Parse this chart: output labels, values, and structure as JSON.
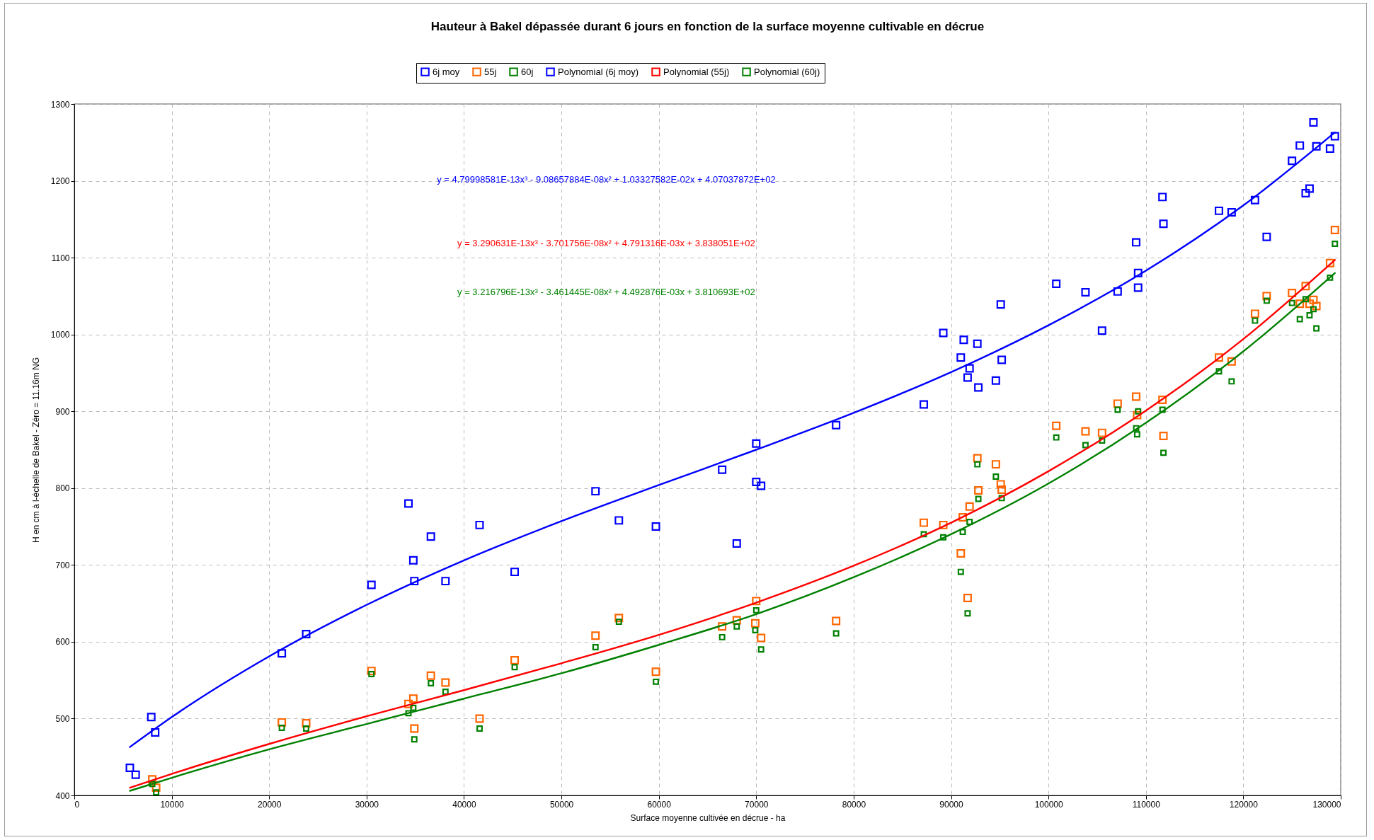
{
  "chart_data": {
    "type": "scatter",
    "title": "Hauteur à Bakel dépassée durant 6 jours en fonction de la surface moyenne cultivable en décrue",
    "xlabel": "Surface moyenne cultivée en décrue - ha",
    "ylabel": "H en cm à l-échelle de Bakel - Zéro = 11.16m NG",
    "xlim": [
      0,
      130000
    ],
    "xticks": [
      0,
      10000,
      20000,
      30000,
      40000,
      50000,
      60000,
      70000,
      80000,
      90000,
      100000,
      110000,
      120000,
      130000
    ],
    "ylim": [
      400,
      1300
    ],
    "yticks": [
      400,
      500,
      600,
      700,
      800,
      900,
      1000,
      1100,
      1200,
      1300
    ],
    "grid": true,
    "legend": "top",
    "annotations": [
      "y = 4.79998581E-13x³ - 9.08657884E-08x² + 1.03327582E-02x + 4.07037872E+02",
      "y = 3.290631E-13x³ - 3.701756E-08x² + 4.791316E-03x + 3.838051E+02",
      "y = 3.216796E-13x³ - 3.461445E-08x² + 4.492876E-03x + 3.810693E+02"
    ],
    "series": [
      {
        "name": "6j moy",
        "marker": "square",
        "color": "#0000ff",
        "x": [
          5700,
          6300,
          7900,
          8300,
          21300,
          23800,
          30500,
          34300,
          34800,
          34900,
          36600,
          38100,
          41600,
          45200,
          53500,
          55900,
          59700,
          66500,
          68000,
          70000,
          70000,
          70500,
          78200,
          87200,
          89200,
          91000,
          91300,
          91700,
          91900,
          92700,
          92800,
          94600,
          95100,
          95200,
          100800,
          103800,
          105500,
          107100,
          109000,
          109200,
          109200,
          111700,
          111800,
          117500,
          118800,
          121200,
          122400,
          125000,
          125800,
          126400,
          126800,
          127200,
          127500,
          128900,
          129400
        ],
        "values": [
          436,
          427,
          502,
          482,
          585,
          610,
          674,
          780,
          706,
          679,
          737,
          679,
          752,
          691,
          796,
          758,
          750,
          824,
          728,
          858,
          808,
          803,
          882,
          909,
          1002,
          970,
          993,
          944,
          956,
          988,
          931,
          940,
          1039,
          967,
          1066,
          1055,
          1005,
          1056,
          1120,
          1080,
          1061,
          1179,
          1144,
          1161,
          1159,
          1175,
          1127,
          1226,
          1246,
          1184,
          1190,
          1276,
          1245,
          1242,
          1258
        ]
      },
      {
        "name": "55j",
        "marker": "square",
        "color": "#ff6600",
        "x": [
          8000,
          8400,
          21300,
          23800,
          30500,
          34300,
          34800,
          34900,
          36600,
          38100,
          41600,
          45200,
          53500,
          55900,
          59700,
          66500,
          68000,
          70000,
          69900,
          70500,
          78200,
          87200,
          89200,
          91000,
          91200,
          91700,
          91900,
          92700,
          92800,
          94600,
          95100,
          95200,
          100800,
          103800,
          105500,
          107100,
          109000,
          109100,
          111700,
          111800,
          117500,
          118800,
          121200,
          122400,
          125000,
          125800,
          126400,
          126800,
          127200,
          127500,
          128900,
          129400
        ],
        "values": [
          421,
          410,
          495,
          494,
          562,
          519,
          526,
          487,
          556,
          547,
          500,
          576,
          608,
          631,
          561,
          620,
          628,
          653,
          624,
          605,
          627,
          755,
          752,
          715,
          762,
          657,
          776,
          839,
          797,
          831,
          805,
          798,
          881,
          874,
          872,
          910,
          919,
          895,
          915,
          868,
          970,
          965,
          1027,
          1050,
          1054,
          1040,
          1063,
          1040,
          1045,
          1037,
          1093,
          1136
        ]
      },
      {
        "name": "60j",
        "marker": "square",
        "color": "#008000",
        "x": [
          8000,
          8400,
          21300,
          23800,
          30500,
          34300,
          34800,
          34900,
          36600,
          38100,
          41600,
          45200,
          53500,
          55900,
          59700,
          66500,
          68000,
          70000,
          69900,
          70500,
          78200,
          87200,
          89200,
          91000,
          91200,
          91700,
          91900,
          92700,
          92800,
          94600,
          95200,
          100800,
          103800,
          105500,
          107100,
          109000,
          109100,
          109200,
          111700,
          111800,
          117500,
          118800,
          121200,
          122400,
          125000,
          125800,
          126400,
          126800,
          127200,
          127500,
          128900,
          129400
        ],
        "values": [
          415,
          404,
          488,
          487,
          558,
          507,
          514,
          473,
          546,
          535,
          487,
          567,
          593,
          626,
          548,
          606,
          620,
          641,
          615,
          590,
          611,
          740,
          736,
          691,
          743,
          637,
          756,
          831,
          786,
          815,
          787,
          866,
          856,
          862,
          902,
          878,
          870,
          900,
          902,
          846,
          952,
          939,
          1018,
          1044,
          1041,
          1020,
          1046,
          1025,
          1033,
          1008,
          1074,
          1118
        ]
      },
      {
        "name": "Polynomial (6j moy)",
        "type": "line",
        "color": "#0000ff",
        "x": [
          5700,
          10000,
          20000,
          30000,
          40000,
          50000,
          60000,
          70000,
          80000,
          90000,
          100000,
          110000,
          120000,
          129400
        ],
        "marker": "none",
        "values": [
          463,
          502,
          581,
          648,
          706,
          757,
          804,
          850,
          898,
          951,
          1012,
          1083,
          1168,
          1263
        ]
      },
      {
        "name": "Polynomial (55j)",
        "type": "line",
        "color": "#ff0000",
        "x": [
          5700,
          10000,
          20000,
          30000,
          40000,
          50000,
          60000,
          70000,
          80000,
          90000,
          100000,
          110000,
          120000,
          129400
        ],
        "marker": "none",
        "values": [
          410,
          428,
          467,
          503,
          537,
          572,
          609,
          651,
          699,
          755,
          822,
          901,
          994,
          1097
        ]
      },
      {
        "name": "Polynomial (60j)",
        "type": "line",
        "color": "#008000",
        "x": [
          5700,
          10000,
          20000,
          30000,
          40000,
          50000,
          60000,
          70000,
          80000,
          90000,
          100000,
          110000,
          120000,
          129400
        ],
        "marker": "none",
        "values": [
          406,
          423,
          460,
          493,
          526,
          559,
          596,
          636,
          684,
          740,
          806,
          885,
          978,
          1080
        ]
      }
    ]
  }
}
